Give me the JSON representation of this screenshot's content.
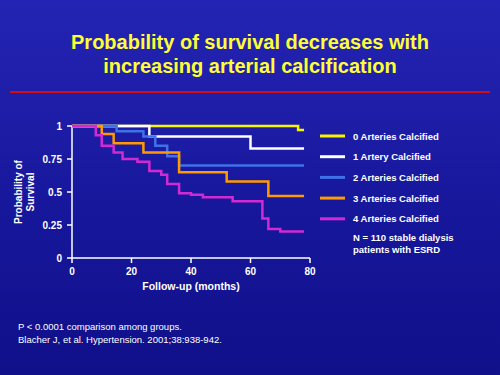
{
  "chart_data": {
    "type": "line",
    "title": "Probability of survival decreases with increasing arterial calcification",
    "xlabel": "Follow-up (months)",
    "ylabel": "Probability of Survival",
    "xlim": [
      0,
      80
    ],
    "ylim": [
      0,
      1
    ],
    "xticks": [
      0,
      20,
      40,
      60,
      80
    ],
    "yticks": [
      0,
      0.25,
      0.5,
      0.75,
      1
    ],
    "grid": false,
    "legend": "right",
    "line_style": "step",
    "series": [
      {
        "name": "0 Arteries Calcified",
        "color": "#f5f500",
        "x": [
          0,
          76,
          78
        ],
        "values": [
          1,
          0.97,
          0.97
        ]
      },
      {
        "name": "1 Artery Calcified",
        "color": "#ffffff",
        "x": [
          0,
          26,
          60,
          78
        ],
        "values": [
          1,
          0.92,
          0.83,
          0.83
        ]
      },
      {
        "name": "2 Arteries Calcified",
        "color": "#3f72e8",
        "x": [
          0,
          15,
          24,
          28,
          32,
          36,
          78
        ],
        "values": [
          1,
          0.96,
          0.92,
          0.85,
          0.77,
          0.7,
          0.7
        ]
      },
      {
        "name": "3 Arteries Calcified",
        "color": "#ff9a00",
        "x": [
          0,
          10,
          14,
          24,
          36,
          52,
          66,
          78
        ],
        "values": [
          1,
          0.94,
          0.87,
          0.8,
          0.65,
          0.58,
          0.47,
          0.47
        ]
      },
      {
        "name": "4 Arteries Calcified",
        "color": "#d22ad2",
        "x": [
          0,
          8,
          10,
          14,
          17,
          22,
          26,
          30,
          32,
          36,
          40,
          44,
          54,
          64,
          66,
          70,
          78
        ],
        "values": [
          1,
          0.93,
          0.85,
          0.8,
          0.75,
          0.73,
          0.66,
          0.63,
          0.56,
          0.49,
          0.48,
          0.46,
          0.43,
          0.3,
          0.22,
          0.2,
          0.2
        ]
      }
    ],
    "note": [
      "N = 110 stable dialysis",
      "patients with ESRD"
    ],
    "annotations": [
      "P < 0.0001 comparison among groups.",
      "Blacher J, et al. Hypertension. 2001;38:938-942."
    ]
  }
}
